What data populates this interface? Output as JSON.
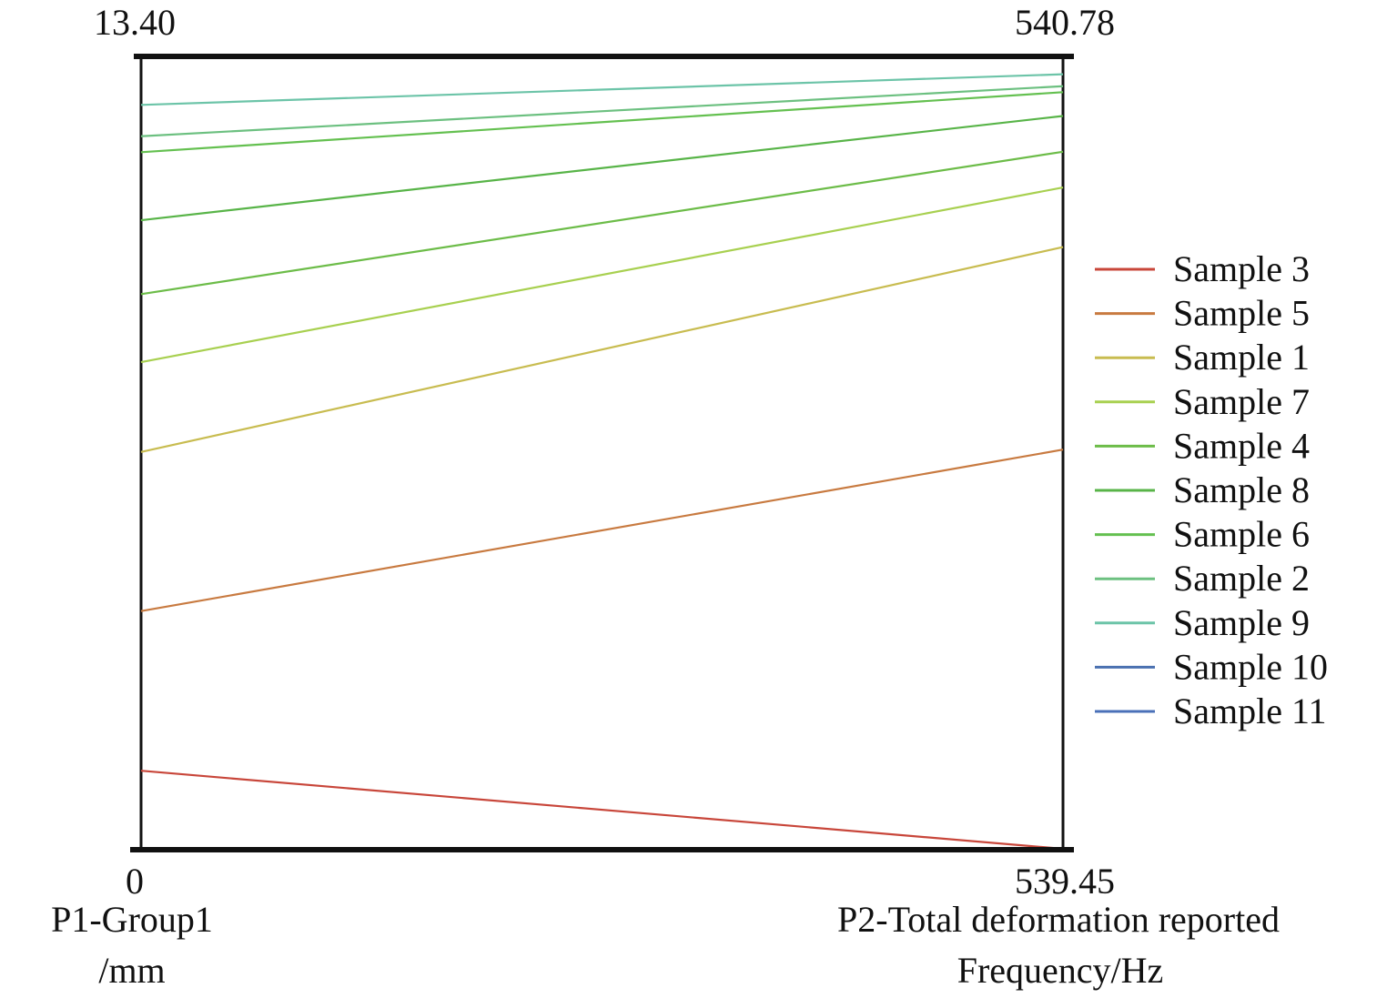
{
  "chart_data": {
    "type": "parallel-coordinates",
    "axes": [
      {
        "name": "P1-Group1",
        "unit_label": "/mm",
        "min": 0,
        "max": 13.4,
        "min_label": "0",
        "max_label": "13.40"
      },
      {
        "name": "P2-Total deformation reported",
        "unit_label": "Frequency/Hz",
        "min": 539.45,
        "max": 540.78,
        "min_label": "539.45",
        "max_label": "540.78"
      }
    ],
    "legend_position": "right",
    "series": [
      {
        "name": "Sample 3",
        "color": "#c8463a",
        "values": [
          1.32,
          539.45
        ]
      },
      {
        "name": "Sample 5",
        "color": "#c87a40",
        "values": [
          4.02,
          540.12
        ]
      },
      {
        "name": "Sample 1",
        "color": "#c8bc50",
        "values": [
          6.71,
          540.46
        ]
      },
      {
        "name": "Sample 7",
        "color": "#a8d050",
        "values": [
          8.23,
          540.56
        ]
      },
      {
        "name": "Sample 4",
        "color": "#6cbc48",
        "values": [
          9.38,
          540.62
        ]
      },
      {
        "name": "Sample 8",
        "color": "#58b448",
        "values": [
          10.63,
          540.68
        ]
      },
      {
        "name": "Sample 6",
        "color": "#64c050",
        "values": [
          11.78,
          540.72
        ]
      },
      {
        "name": "Sample 2",
        "color": "#6cc080",
        "values": [
          12.05,
          540.73
        ]
      },
      {
        "name": "Sample 9",
        "color": "#6cc4a8",
        "values": [
          12.58,
          540.75
        ]
      },
      {
        "name": "Sample 10",
        "color": "#4a70b0",
        "values": [
          13.4,
          540.78
        ]
      },
      {
        "name": "Sample 11",
        "color": "#4a70b8",
        "values": [
          13.4,
          540.78
        ]
      }
    ]
  }
}
